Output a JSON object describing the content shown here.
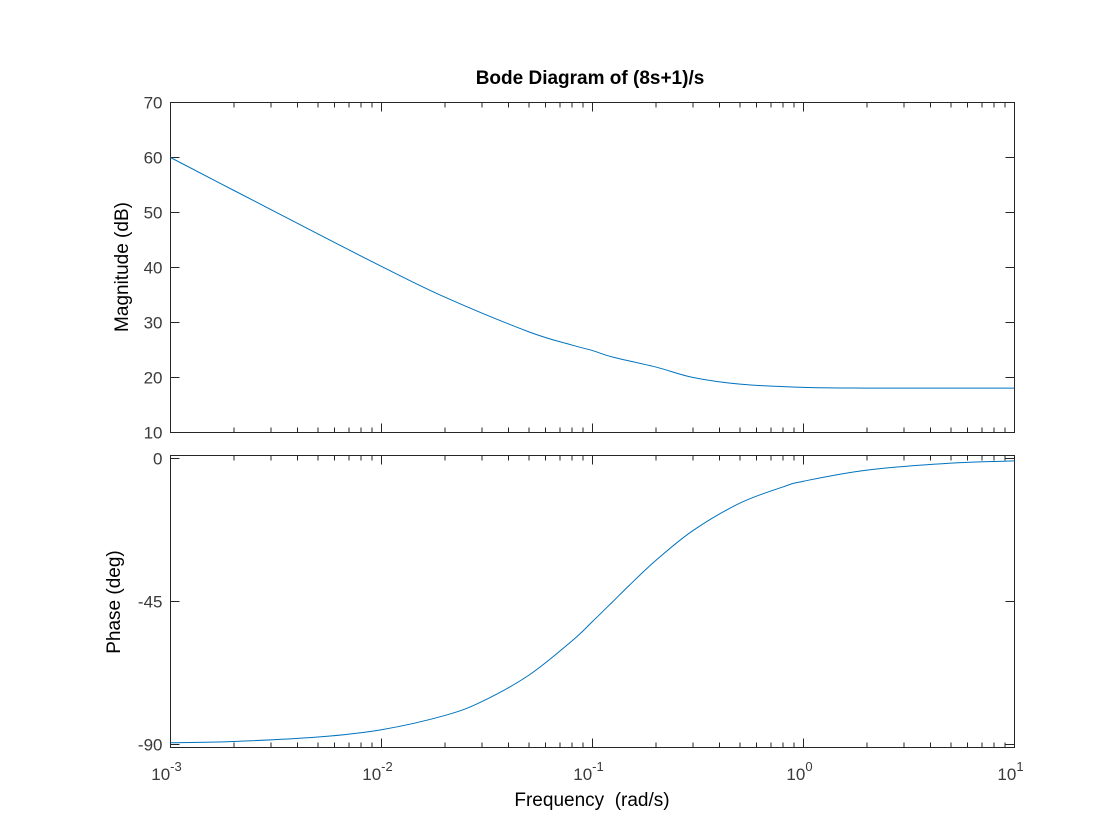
{
  "chart_data": [
    {
      "type": "line",
      "panel": "magnitude",
      "title": "Bode Diagram of (8s+1)/s",
      "ylabel": "Magnitude (dB)",
      "xlabel": "",
      "xscale": "log",
      "xlim": [
        0.001,
        10
      ],
      "ylim": [
        10,
        70
      ],
      "yticks": [
        10,
        20,
        30,
        40,
        50,
        60,
        70
      ],
      "ytick_labels": [
        "10",
        "20",
        "30",
        "40",
        "50",
        "60",
        "70"
      ],
      "grid": false,
      "series": [
        {
          "color": "#0072bd",
          "x": [
            0.001,
            0.002,
            0.005,
            0.01,
            0.02,
            0.05,
            0.08,
            0.1,
            0.125,
            0.2,
            0.3,
            0.5,
            1,
            2,
            5,
            10
          ],
          "y": [
            60.0,
            54.0,
            46.1,
            40.2,
            34.6,
            28.3,
            25.9,
            24.9,
            23.7,
            21.9,
            20.0,
            18.8,
            18.2,
            18.07,
            18.06,
            18.06
          ]
        }
      ]
    },
    {
      "type": "line",
      "panel": "phase",
      "ylabel": "Phase (deg)",
      "xlabel": "Frequency  (rad/s)",
      "xscale": "log",
      "xlim": [
        0.001,
        10
      ],
      "ylim": [
        -91,
        1
      ],
      "yticks": [
        -90,
        -45,
        0
      ],
      "ytick_labels": [
        "-90",
        "-45",
        "0"
      ],
      "xtick_labels": [
        {
          "base": "10",
          "exp": "-3"
        },
        {
          "base": "10",
          "exp": "-2"
        },
        {
          "base": "10",
          "exp": "-1"
        },
        {
          "base": "10",
          "exp": "0"
        },
        {
          "base": "10",
          "exp": "1"
        }
      ],
      "grid": false,
      "series": [
        {
          "color": "#0072bd",
          "x": [
            0.001,
            0.002,
            0.005,
            0.01,
            0.02,
            0.03,
            0.05,
            0.08,
            0.1,
            0.125,
            0.15,
            0.2,
            0.3,
            0.5,
            0.8,
            1,
            2,
            5,
            10
          ],
          "y": [
            -89.5,
            -89.1,
            -87.7,
            -85.4,
            -80.9,
            -76.5,
            -68.2,
            -57.4,
            -51.3,
            -45.0,
            -39.8,
            -32.0,
            -22.6,
            -14.0,
            -8.9,
            -7.1,
            -3.6,
            -1.4,
            -0.7
          ]
        }
      ]
    }
  ]
}
